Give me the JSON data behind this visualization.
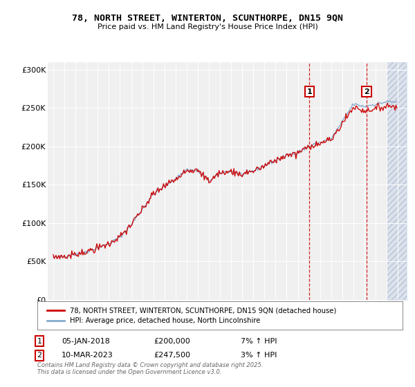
{
  "title1": "78, NORTH STREET, WINTERTON, SCUNTHORPE, DN15 9QN",
  "title2": "Price paid vs. HM Land Registry's House Price Index (HPI)",
  "legend1": "78, NORTH STREET, WINTERTON, SCUNTHORPE, DN15 9QN (detached house)",
  "legend2": "HPI: Average price, detached house, North Lincolnshire",
  "annotation1_date": "05-JAN-2018",
  "annotation1_price": "£200,000",
  "annotation1_hpi": "7% ↑ HPI",
  "annotation2_date": "10-MAR-2023",
  "annotation2_price": "£247,500",
  "annotation2_hpi": "3% ↑ HPI",
  "footnote1": "Contains HM Land Registry data © Crown copyright and database right 2025.",
  "footnote2": "This data is licensed under the Open Government Licence v3.0.",
  "red_color": "#cc0000",
  "blue_color": "#88aace",
  "hatch_color": "#c8d8e8",
  "annotation_box_color": "#cc0000",
  "plot_bg_color": "#f0f0f0",
  "ylim": [
    0,
    310000
  ],
  "yticks": [
    0,
    50000,
    100000,
    150000,
    200000,
    250000,
    300000
  ],
  "ytick_labels": [
    "£0",
    "£50K",
    "£100K",
    "£150K",
    "£200K",
    "£250K",
    "£300K"
  ],
  "vline1_x": 2018.04,
  "vline2_x": 2023.19,
  "marker1_y": 200000,
  "marker2_y": 247500,
  "future_shade_start": 2025.0,
  "xmin": 1994.5,
  "xmax": 2026.8
}
